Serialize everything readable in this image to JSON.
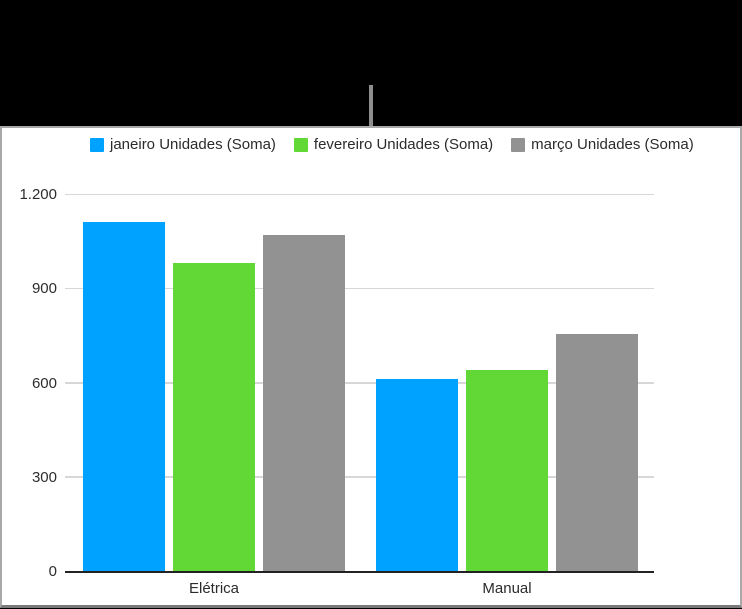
{
  "figure": {
    "background": "#000000",
    "callout_line_color": "#8e8e8e"
  },
  "chart_data": {
    "type": "bar",
    "categories": [
      "Elétrica",
      "Manual"
    ],
    "series": [
      {
        "name": "janeiro Unidades (Soma)",
        "color": "#00A2FF",
        "values": [
          1110,
          610
        ]
      },
      {
        "name": "fevereiro Unidades (Soma)",
        "color": "#61D836",
        "values": [
          980,
          640
        ]
      },
      {
        "name": "março Unidades (Soma)",
        "color": "#929292",
        "values": [
          1070,
          755
        ]
      }
    ],
    "ylim": [
      0,
      1200
    ],
    "yticks": [
      {
        "value": 0,
        "label": "0"
      },
      {
        "value": 300,
        "label": "300"
      },
      {
        "value": 600,
        "label": "600"
      },
      {
        "value": 900,
        "label": "900"
      },
      {
        "value": 1200,
        "label": "1.200"
      }
    ],
    "grid": true,
    "legend_position": "top"
  }
}
